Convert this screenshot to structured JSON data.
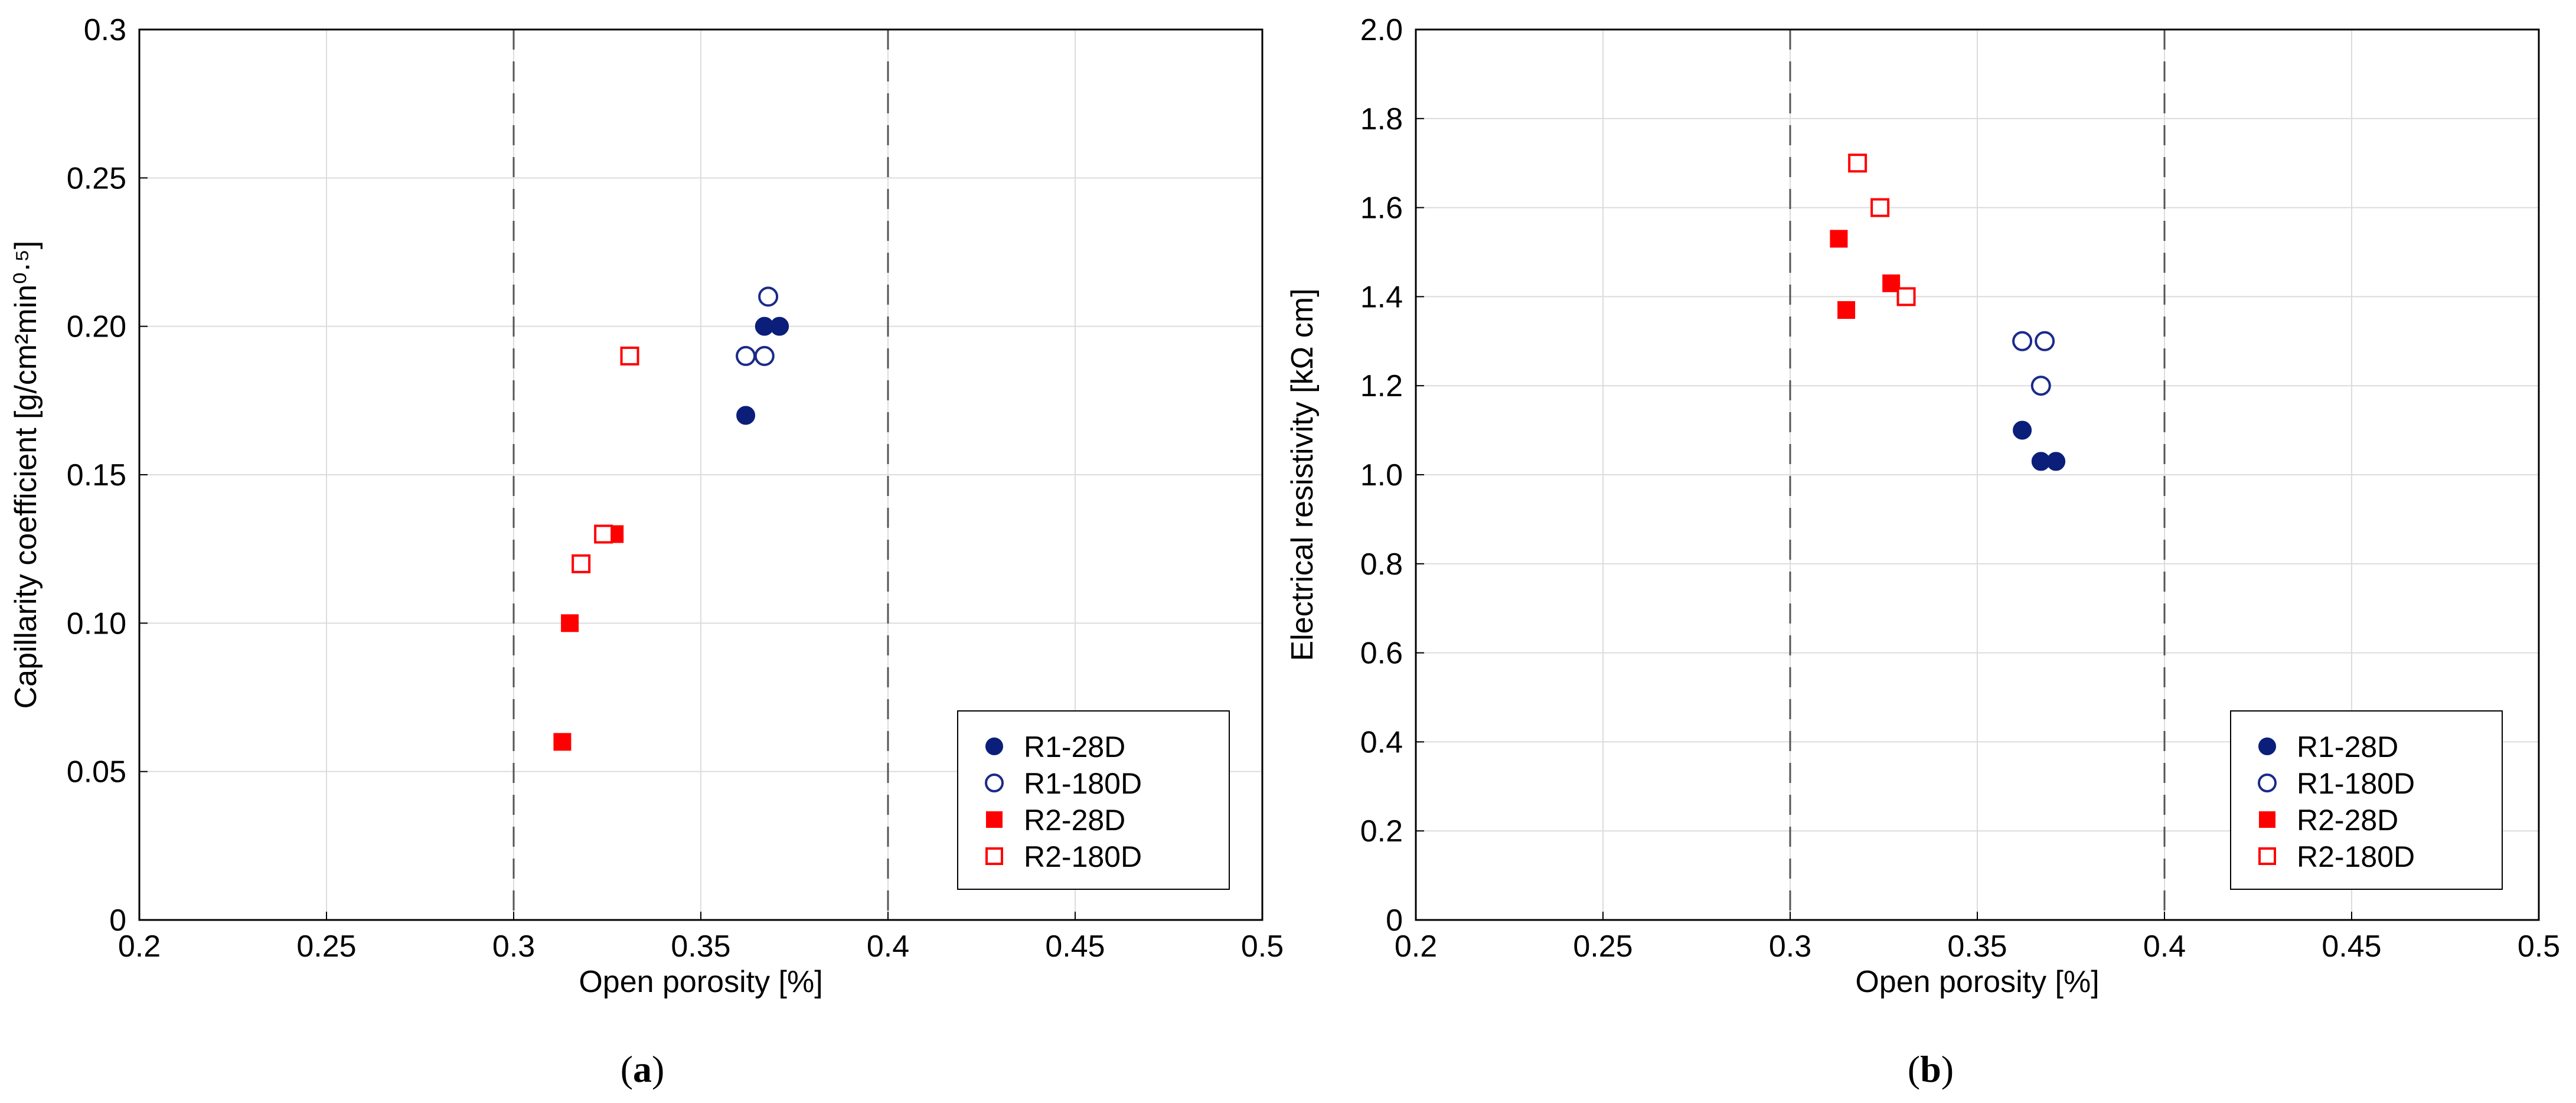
{
  "chart_data": [
    {
      "type": "scatter",
      "panel_label": "a",
      "title": "",
      "xlabel": "Open porosity [%]",
      "ylabel": "Capillarity coefficient [g/cm²min⁰·⁵]",
      "xlim": [
        0.2,
        0.5
      ],
      "ylim": [
        0,
        0.3
      ],
      "x_ticks": [
        "0.2",
        "0.25",
        "0.3",
        "0.35",
        "0.4",
        "0.45",
        "0.5"
      ],
      "y_ticks": [
        "0",
        "0.05",
        "0.10",
        "0.15",
        "0.20",
        "0.25",
        "0.3"
      ],
      "grid": true,
      "reference_lines_x": [
        0.3,
        0.4
      ],
      "legend_position": "bottom-right",
      "series": [
        {
          "name": "R1-28D",
          "marker": "circle",
          "filled": true,
          "color": "#0b1f7a",
          "points": [
            [
              0.362,
              0.17
            ],
            [
              0.367,
              0.2
            ],
            [
              0.371,
              0.2
            ]
          ]
        },
        {
          "name": "R1-180D",
          "marker": "circle",
          "filled": false,
          "color": "#1a2a8a",
          "points": [
            [
              0.362,
              0.19
            ],
            [
              0.367,
              0.19
            ],
            [
              0.368,
              0.21
            ]
          ]
        },
        {
          "name": "R2-28D",
          "marker": "square",
          "filled": true,
          "color": "#ff0000",
          "points": [
            [
              0.313,
              0.06
            ],
            [
              0.315,
              0.1
            ],
            [
              0.327,
              0.13
            ]
          ]
        },
        {
          "name": "R2-180D",
          "marker": "square",
          "filled": false,
          "color": "#ff0000",
          "points": [
            [
              0.318,
              0.12
            ],
            [
              0.324,
              0.13
            ],
            [
              0.331,
              0.19
            ]
          ]
        }
      ]
    },
    {
      "type": "scatter",
      "panel_label": "b",
      "title": "",
      "xlabel": "Open porosity [%]",
      "ylabel": "Electrical resistivity [kΩ cm]",
      "xlim": [
        0.2,
        0.5
      ],
      "ylim": [
        0,
        2.0
      ],
      "x_ticks": [
        "0.2",
        "0.25",
        "0.3",
        "0.35",
        "0.4",
        "0.45",
        "0.5"
      ],
      "y_ticks": [
        "0",
        "0.2",
        "0.4",
        "0.6",
        "0.8",
        "1.0",
        "1.2",
        "1.4",
        "1.6",
        "1.8",
        "2.0"
      ],
      "grid": true,
      "reference_lines_x": [
        0.3,
        0.4
      ],
      "legend_position": "bottom-right",
      "series": [
        {
          "name": "R1-28D",
          "marker": "circle",
          "filled": true,
          "color": "#0b1f7a",
          "points": [
            [
              0.362,
              1.1
            ],
            [
              0.367,
              1.03
            ],
            [
              0.371,
              1.03
            ]
          ]
        },
        {
          "name": "R1-180D",
          "marker": "circle",
          "filled": false,
          "color": "#1a2a8a",
          "points": [
            [
              0.362,
              1.3
            ],
            [
              0.367,
              1.2
            ],
            [
              0.368,
              1.3
            ]
          ]
        },
        {
          "name": "R2-28D",
          "marker": "square",
          "filled": true,
          "color": "#ff0000",
          "points": [
            [
              0.313,
              1.53
            ],
            [
              0.315,
              1.37
            ],
            [
              0.327,
              1.43
            ]
          ]
        },
        {
          "name": "R2-180D",
          "marker": "square",
          "filled": false,
          "color": "#ff0000",
          "points": [
            [
              0.318,
              1.7
            ],
            [
              0.324,
              1.6
            ],
            [
              0.331,
              1.4
            ]
          ]
        }
      ]
    }
  ]
}
